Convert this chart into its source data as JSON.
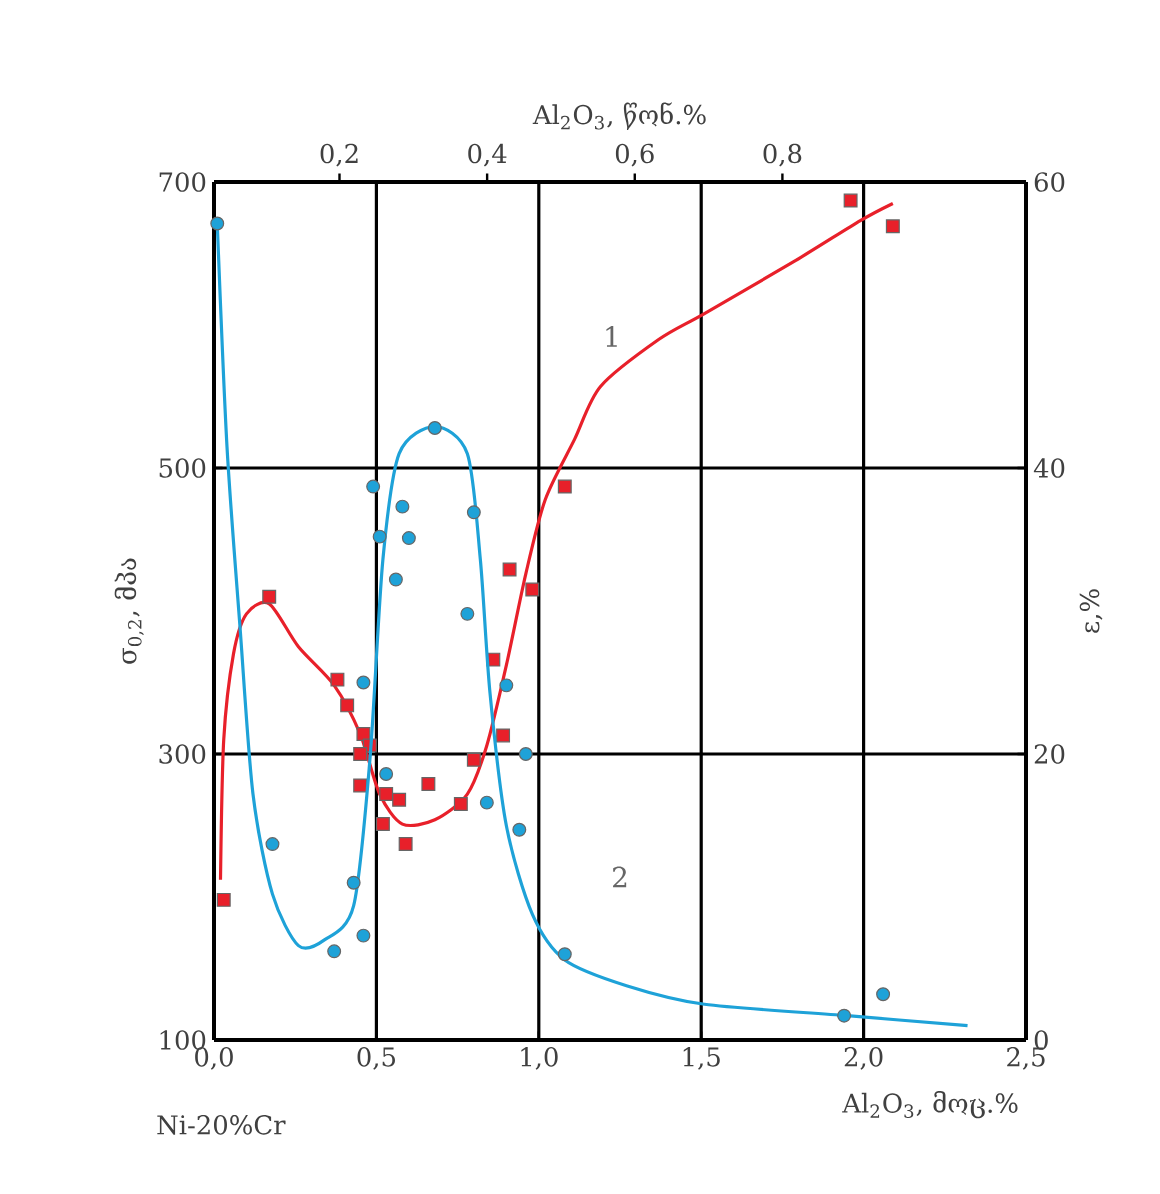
{
  "chart_data": {
    "type": "scatter",
    "xlabel": "Al$_{2}$O$_{3}$, მოც.%",
    "x2label": "Al$_{2}$O$_{3}$, წონ.%",
    "ylabel": "σ$_{0,2}$, მპა",
    "y2label": "ε,%",
    "xlim": [
      0,
      2.5
    ],
    "xticks": [
      {
        "value": 0,
        "label": "0,0"
      },
      {
        "value": 0.5,
        "label": "0,5"
      },
      {
        "value": 1.0,
        "label": "1,0"
      },
      {
        "value": 1.5,
        "label": "1,5"
      },
      {
        "value": 2.0,
        "label": "2,0"
      },
      {
        "value": 2.5,
        "label": "2,5"
      }
    ],
    "x2lim": [
      0.03,
      1.13
    ],
    "x2ticks": [
      {
        "value": 0.2,
        "label": "0,2"
      },
      {
        "value": 0.4,
        "label": "0,4"
      },
      {
        "value": 0.6,
        "label": "0,6"
      },
      {
        "value": 0.8,
        "label": "0,8"
      }
    ],
    "ylim": [
      100,
      700
    ],
    "yticks": [
      100,
      300,
      500,
      700
    ],
    "y2lim": [
      0,
      60
    ],
    "y2ticks": [
      0,
      20,
      40,
      60
    ],
    "grid": true,
    "series": [
      {
        "marker": "square",
        "color": "#e8202a",
        "x": [
          0.03,
          0.17,
          0.38,
          0.41,
          0.46,
          0.48,
          0.45,
          0.45,
          0.53,
          0.57,
          0.52,
          0.59,
          0.66,
          0.76,
          0.8,
          0.86,
          0.91,
          0.98,
          0.89,
          1.08,
          1.96,
          2.09
        ],
        "values": [
          198,
          410,
          352,
          334,
          314,
          306,
          300,
          278,
          272,
          268,
          251,
          237,
          279,
          265,
          296,
          366,
          429,
          415,
          313,
          487,
          687,
          669
        ]
      },
      {
        "type": "line",
        "line_style": "solid",
        "color": "#e8202a",
        "x": [
          0.02,
          0.03,
          0.06,
          0.1,
          0.17,
          0.26,
          0.37,
          0.45,
          0.51,
          0.58,
          0.68,
          0.78,
          0.84,
          0.9,
          0.96,
          1.02,
          1.11,
          1.19,
          1.37,
          1.51,
          1.79,
          1.99,
          2.09
        ],
        "values": [
          212,
          310,
          370,
          398,
          405,
          375,
          348,
          314,
          272,
          251,
          254,
          272,
          306,
          362,
          426,
          478,
          520,
          557,
          590,
          608,
          645,
          673,
          685
        ]
      },
      {
        "axis": "y2",
        "marker": "circle",
        "color": "#1ea2d8",
        "x": [
          0.01,
          0.18,
          0.37,
          0.43,
          0.46,
          0.46,
          0.49,
          0.51,
          0.56,
          0.58,
          0.6,
          0.53,
          0.68,
          0.8,
          0.78,
          0.84,
          0.9,
          0.96,
          0.94,
          1.08,
          1.94,
          2.06
        ],
        "values": [
          57.1,
          13.7,
          6.2,
          11.0,
          7.3,
          25.0,
          38.7,
          35.2,
          32.2,
          37.3,
          35.1,
          18.6,
          42.8,
          36.9,
          29.8,
          16.6,
          24.8,
          20.0,
          14.7,
          6.0,
          1.7,
          3.2
        ]
      },
      {
        "type": "line",
        "axis": "y2",
        "line_style": "solid",
        "color": "#1ea2d8",
        "x": [
          0.01,
          0.04,
          0.08,
          0.12,
          0.18,
          0.26,
          0.34,
          0.43,
          0.48,
          0.52,
          0.57,
          0.68,
          0.78,
          0.82,
          0.85,
          0.9,
          0.98,
          1.08,
          1.27,
          1.51,
          1.95,
          2.32
        ],
        "values": [
          57.1,
          41.5,
          28.9,
          17.2,
          10.2,
          6.6,
          7.0,
          9.4,
          19.6,
          33.6,
          41.0,
          42.9,
          41.0,
          33.6,
          24.2,
          15.0,
          8.8,
          5.6,
          3.8,
          2.5,
          1.7,
          1.0
        ]
      }
    ],
    "annotations": [
      "1",
      "2",
      "Ni-20%Cr"
    ]
  }
}
